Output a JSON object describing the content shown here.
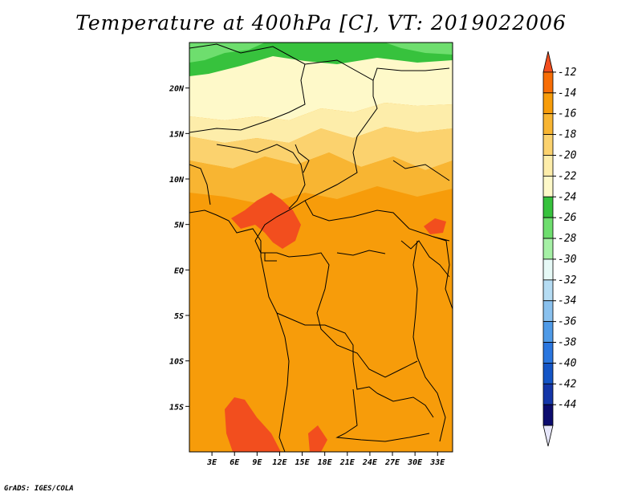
{
  "title": "Temperature at 400hPa [C], VT: 2019022006",
  "credit": "GrADS: IGES/COLA",
  "map": {
    "lon_range": [
      0,
      35
    ],
    "lat_range": [
      -20,
      25
    ],
    "lat_ticks": [
      {
        "value": 20,
        "label": "20N"
      },
      {
        "value": 15,
        "label": "15N"
      },
      {
        "value": 10,
        "label": "10N"
      },
      {
        "value": 5,
        "label": "5N"
      },
      {
        "value": 0,
        "label": "EQ"
      },
      {
        "value": -5,
        "label": "5S"
      },
      {
        "value": -10,
        "label": "10S"
      },
      {
        "value": -15,
        "label": "15S"
      }
    ],
    "lon_ticks": [
      {
        "value": 3,
        "label": "3E"
      },
      {
        "value": 6,
        "label": "6E"
      },
      {
        "value": 9,
        "label": "9E"
      },
      {
        "value": 12,
        "label": "12E"
      },
      {
        "value": 15,
        "label": "15E"
      },
      {
        "value": 18,
        "label": "18E"
      },
      {
        "value": 21,
        "label": "21E"
      },
      {
        "value": 24,
        "label": "24E"
      },
      {
        "value": 27,
        "label": "27E"
      },
      {
        "value": 30,
        "label": "30E"
      },
      {
        "value": 33,
        "label": "33E"
      }
    ]
  },
  "colorbar": {
    "labels": [
      "-12",
      "-14",
      "-16",
      "-18",
      "-20",
      "-22",
      "-24",
      "-26",
      "-28",
      "-30",
      "-32",
      "-34",
      "-36",
      "-38",
      "-40",
      "-42",
      "-44"
    ],
    "colors": [
      "#f24e1e",
      "#f76d05",
      "#f79c0a",
      "#f8b532",
      "#fbd26e",
      "#fdedaa",
      "#fef9c9",
      "#37c23d",
      "#6ede6e",
      "#a5f0a5",
      "#e6f9f6",
      "#b5dcf3",
      "#8ac1ee",
      "#4f9ae7",
      "#2a76df",
      "#1455c6",
      "#1436a8",
      "#0c0c6e",
      "#e6e6fa"
    ]
  }
}
